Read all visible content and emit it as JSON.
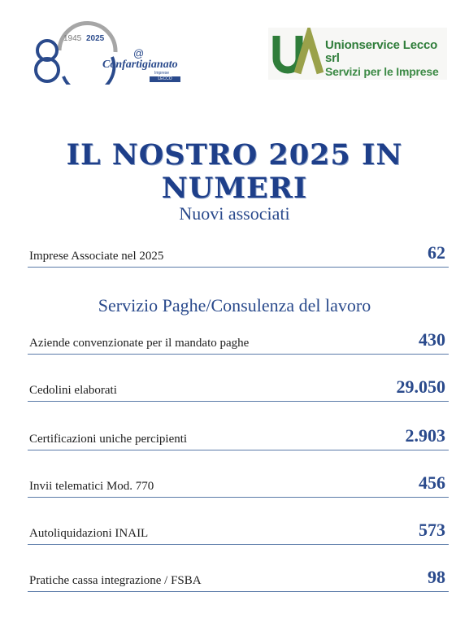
{
  "logos": {
    "left": {
      "year_start": "1945",
      "year_end": "2025",
      "brand": "Confartigianato",
      "sub1": "Imprese",
      "sub2": "LECCO"
    },
    "right": {
      "mark": "UA",
      "line1": "Unionservice Lecco srl",
      "line2": "Servizi per le Imprese"
    }
  },
  "title": "IL NOSTRO 2025 IN NUMERI",
  "sections": [
    {
      "title": "Nuovi associati",
      "rows": [
        {
          "label": "Imprese Associate nel 2025",
          "value": "62"
        }
      ]
    },
    {
      "title": "Servizio Paghe/Consulenza del lavoro",
      "rows": [
        {
          "label": "Aziende convenzionate per il mandato paghe",
          "value": "430"
        },
        {
          "label": "Cedolini elaborati",
          "value": "29.050"
        },
        {
          "label": "Certificazioni uniche percipienti",
          "value": "2.903"
        },
        {
          "label": "Invii telematici Mod. 770",
          "value": "456"
        },
        {
          "label": "Autoliquidazioni INAIL",
          "value": "573"
        },
        {
          "label": "Pratiche cassa integrazione / FSBA",
          "value": "98"
        }
      ]
    }
  ],
  "colors": {
    "accent": "#2a4a8c",
    "green": "#2f7d3a",
    "grey": "#9a9a9a"
  }
}
